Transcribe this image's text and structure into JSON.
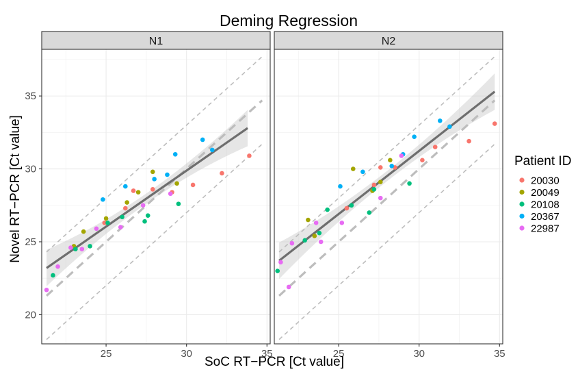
{
  "chart_data": {
    "type": "scatter",
    "title": "Deming Regression",
    "xlabel": "SoC RT−PCR [Ct value]",
    "ylabel": "Novel RT−PCR [Ct value]",
    "xlim": [
      21,
      35.2
    ],
    "ylim": [
      18,
      38.2
    ],
    "x_ticks": [
      25,
      30,
      35
    ],
    "y_ticks": [
      20,
      25,
      30,
      35
    ],
    "x_tick_labels": [
      "25",
      "30",
      "35"
    ],
    "y_tick_labels": [
      "20",
      "25",
      "30",
      "35"
    ],
    "grid": true,
    "legend": {
      "title": "Patient ID",
      "position": "right",
      "entries": [
        {
          "label": "20030",
          "color": "#F8766D"
        },
        {
          "label": "20049",
          "color": "#A3A500"
        },
        {
          "label": "20108",
          "color": "#00BF7D"
        },
        {
          "label": "20367",
          "color": "#00B0F6"
        },
        {
          "label": "22987",
          "color": "#E76BF3"
        }
      ]
    },
    "panels": [
      {
        "label": "N1",
        "regression": {
          "x_start": 21.3,
          "y_start": 23.2,
          "x_end": 33.8,
          "y_end": 32.8
        },
        "identity_line": {
          "x_start": 21.3,
          "x_end": 34.7
        },
        "offset_lines": [
          3,
          -3
        ],
        "series": [
          {
            "name": "20030",
            "points": [
              [
                24.9,
                26.3
              ],
              [
                26.2,
                27.3
              ],
              [
                26.7,
                28.5
              ],
              [
                27.9,
                28.6
              ],
              [
                29.1,
                28.4
              ],
              [
                30.4,
                28.9
              ],
              [
                32.2,
                29.7
              ],
              [
                33.9,
                30.9
              ]
            ]
          },
          {
            "name": "20049",
            "points": [
              [
                23.0,
                24.7
              ],
              [
                23.6,
                25.7
              ],
              [
                25.0,
                26.6
              ],
              [
                26.3,
                27.7
              ],
              [
                27.0,
                28.4
              ],
              [
                27.9,
                29.8
              ],
              [
                29.4,
                29.0
              ]
            ]
          },
          {
            "name": "20108",
            "points": [
              [
                21.7,
                22.7
              ],
              [
                23.1,
                24.5
              ],
              [
                24.0,
                24.7
              ],
              [
                25.1,
                26.3
              ],
              [
                26.0,
                26.7
              ],
              [
                27.4,
                26.4
              ],
              [
                27.6,
                26.8
              ],
              [
                29.5,
                27.6
              ]
            ]
          },
          {
            "name": "20367",
            "points": [
              [
                24.8,
                27.9
              ],
              [
                26.2,
                28.8
              ],
              [
                28.0,
                29.3
              ],
              [
                28.8,
                29.6
              ],
              [
                29.3,
                31.0
              ],
              [
                31.0,
                32.0
              ],
              [
                31.6,
                31.3
              ]
            ]
          },
          {
            "name": "22987",
            "points": [
              [
                21.3,
                21.7
              ],
              [
                22.0,
                23.3
              ],
              [
                22.8,
                24.6
              ],
              [
                23.5,
                24.5
              ],
              [
                24.4,
                25.9
              ],
              [
                25.9,
                26.0
              ],
              [
                27.3,
                27.5
              ],
              [
                29.0,
                28.3
              ]
            ]
          }
        ]
      },
      {
        "label": "N2",
        "regression": {
          "x_start": 21.3,
          "y_start": 23.7,
          "x_end": 34.7,
          "y_end": 35.3
        },
        "identity_line": {
          "x_start": 21.3,
          "x_end": 34.7
        },
        "offset_lines": [
          3,
          -3
        ],
        "series": [
          {
            "name": "20030",
            "points": [
              [
                25.5,
                27.3
              ],
              [
                27.2,
                28.9
              ],
              [
                27.6,
                30.1
              ],
              [
                28.5,
                30.1
              ],
              [
                30.2,
                30.6
              ],
              [
                31.0,
                31.5
              ],
              [
                33.1,
                31.9
              ],
              [
                34.7,
                33.1
              ]
            ]
          },
          {
            "name": "20049",
            "points": [
              [
                23.1,
                26.5
              ],
              [
                23.5,
                25.4
              ],
              [
                25.9,
                30.0
              ],
              [
                27.1,
                28.5
              ],
              [
                27.6,
                29.1
              ],
              [
                28.2,
                30.6
              ]
            ]
          },
          {
            "name": "20108",
            "points": [
              [
                21.2,
                23.0
              ],
              [
                22.9,
                25.1
              ],
              [
                23.8,
                25.6
              ],
              [
                24.3,
                27.2
              ],
              [
                25.8,
                27.5
              ],
              [
                26.9,
                27.0
              ],
              [
                27.2,
                28.6
              ],
              [
                29.4,
                29.0
              ]
            ]
          },
          {
            "name": "20367",
            "points": [
              [
                25.1,
                28.8
              ],
              [
                26.5,
                29.8
              ],
              [
                28.3,
                30.2
              ],
              [
                29.0,
                31.0
              ],
              [
                29.7,
                32.2
              ],
              [
                31.3,
                33.3
              ],
              [
                31.9,
                32.9
              ]
            ]
          },
          {
            "name": "22987",
            "points": [
              [
                21.4,
                23.6
              ],
              [
                21.9,
                21.9
              ],
              [
                22.1,
                24.9
              ],
              [
                23.6,
                26.3
              ],
              [
                23.9,
                25.0
              ],
              [
                25.2,
                26.3
              ],
              [
                27.6,
                28.0
              ],
              [
                28.9,
                30.9
              ]
            ]
          }
        ]
      }
    ]
  }
}
